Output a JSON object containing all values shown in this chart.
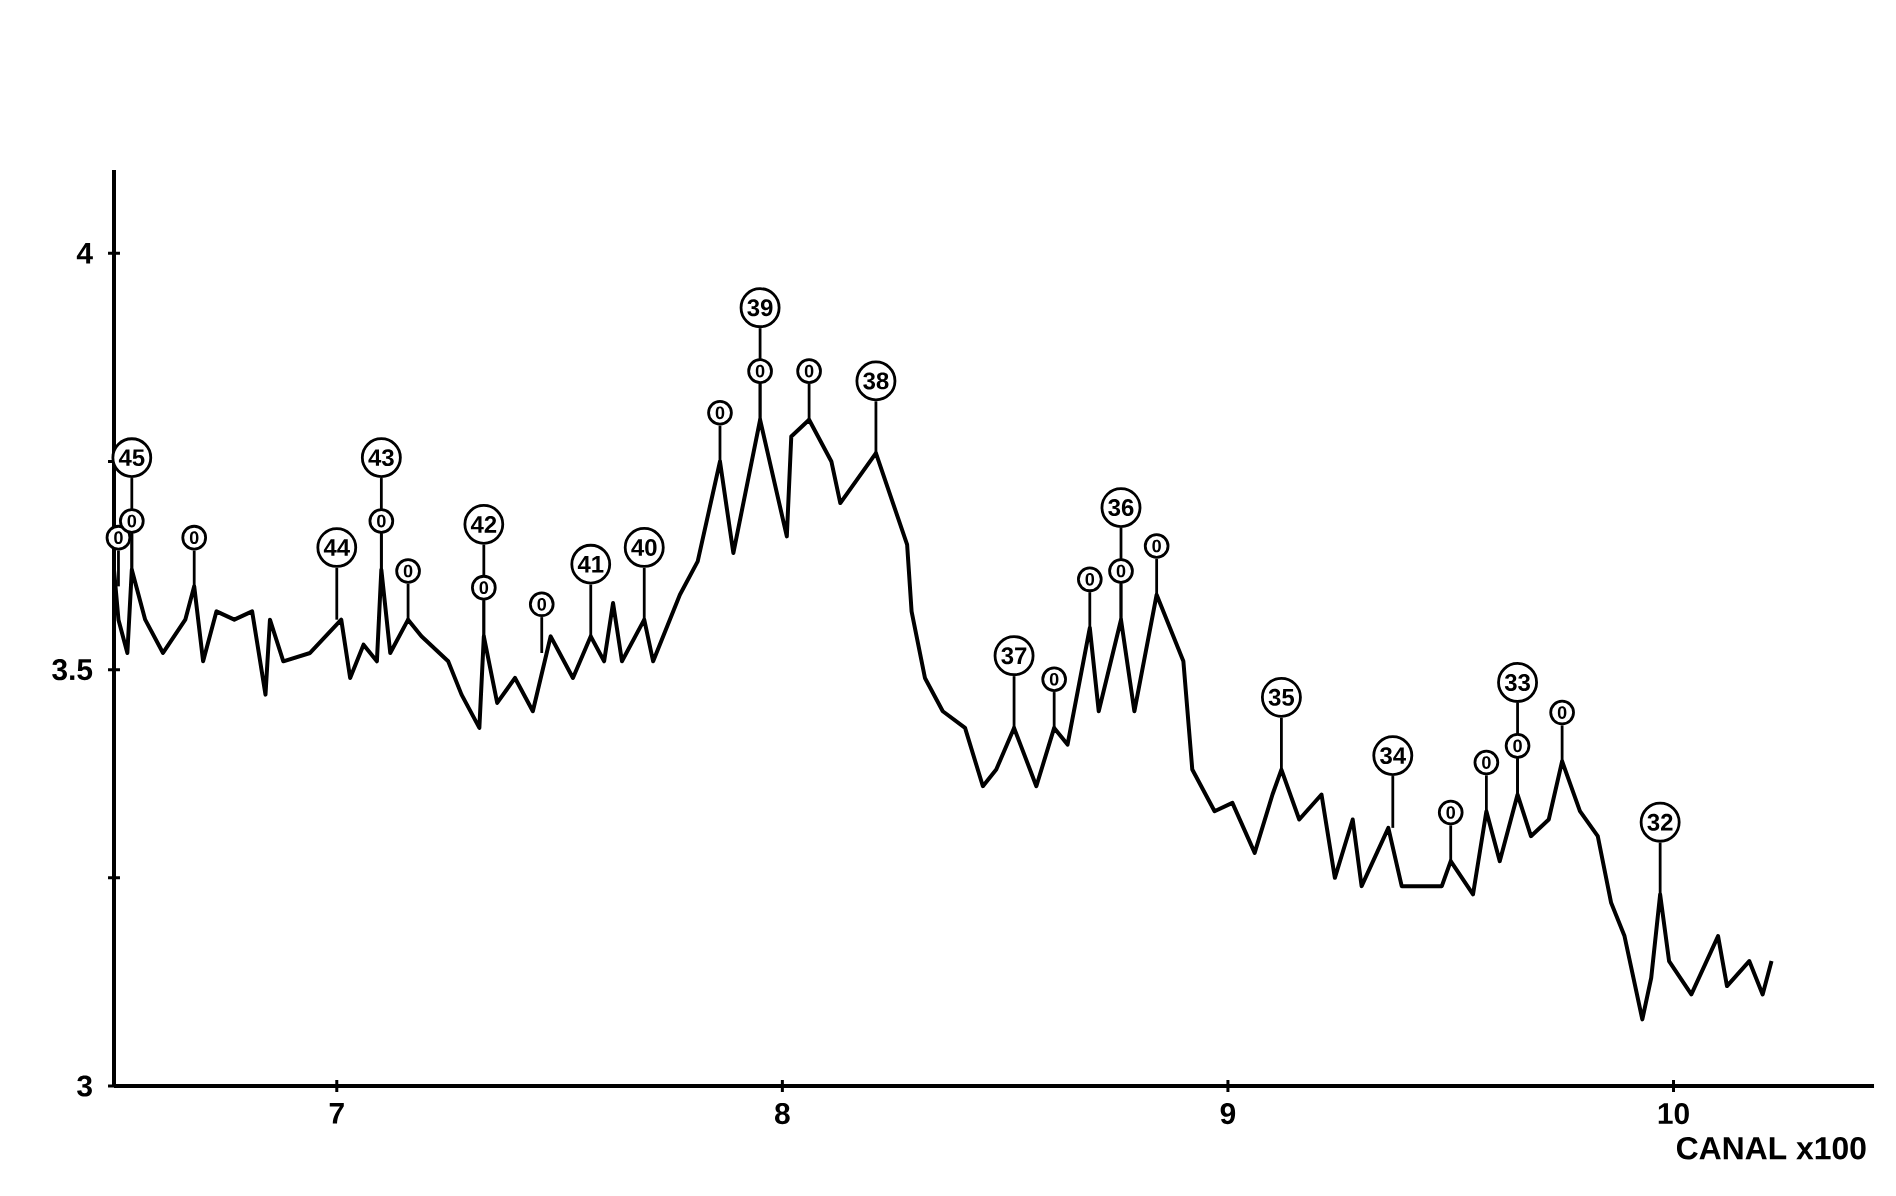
{
  "chart_data": {
    "type": "line",
    "xlabel": "CANAL  x100",
    "xlim": [
      6.5,
      10.45
    ],
    "ylim": [
      3,
      4.1
    ],
    "xticks": [
      7,
      8,
      9,
      10
    ],
    "yticks": [
      3,
      {
        "value": 3.25,
        "label": null
      },
      3.5,
      {
        "value": 3.75,
        "label": null
      },
      4
    ],
    "series": [
      {
        "color": "#000000",
        "x": [
          6.5,
          6.51,
          6.53,
          6.54,
          6.57,
          6.61,
          6.66,
          6.68,
          6.7,
          6.73,
          6.77,
          6.81,
          6.84,
          6.85,
          6.88,
          6.94,
          7.01,
          7.03,
          7.06,
          7.09,
          7.1,
          7.12,
          7.16,
          7.19,
          7.25,
          7.28,
          7.32,
          7.33,
          7.36,
          7.4,
          7.44,
          7.48,
          7.5,
          7.53,
          7.57,
          7.6,
          7.62,
          7.64,
          7.69,
          7.71,
          7.77,
          7.81,
          7.86,
          7.89,
          7.95,
          8.01,
          8.02,
          8.06,
          8.11,
          8.13,
          8.17,
          8.21,
          8.28,
          8.29,
          8.32,
          8.36,
          8.41,
          8.45,
          8.48,
          8.52,
          8.57,
          8.61,
          8.64,
          8.69,
          8.71,
          8.76,
          8.79,
          8.84,
          8.9,
          8.92,
          8.97,
          9.01,
          9.06,
          9.1,
          9.12,
          9.16,
          9.21,
          9.24,
          9.28,
          9.3,
          9.36,
          9.39,
          9.48,
          9.5,
          9.55,
          9.58,
          9.61,
          9.65,
          9.68,
          9.72,
          9.75,
          9.79,
          9.83,
          9.86,
          9.89,
          9.93,
          9.95,
          9.97,
          9.99,
          10.04,
          10.1,
          10.12,
          10.17,
          10.2,
          10.22
        ],
        "values": [
          3.62,
          3.56,
          3.52,
          3.62,
          3.56,
          3.52,
          3.56,
          3.6,
          3.51,
          3.57,
          3.56,
          3.57,
          3.47,
          3.56,
          3.51,
          3.52,
          3.56,
          3.49,
          3.53,
          3.51,
          3.62,
          3.52,
          3.56,
          3.54,
          3.51,
          3.47,
          3.43,
          3.54,
          3.46,
          3.49,
          3.45,
          3.54,
          3.52,
          3.49,
          3.54,
          3.51,
          3.58,
          3.51,
          3.56,
          3.51,
          3.59,
          3.63,
          3.75,
          3.64,
          3.8,
          3.66,
          3.78,
          3.8,
          3.75,
          3.7,
          3.73,
          3.76,
          3.65,
          3.57,
          3.49,
          3.45,
          3.43,
          3.36,
          3.38,
          3.43,
          3.36,
          3.43,
          3.41,
          3.55,
          3.45,
          3.56,
          3.45,
          3.59,
          3.51,
          3.38,
          3.33,
          3.34,
          3.28,
          3.35,
          3.38,
          3.32,
          3.35,
          3.25,
          3.32,
          3.24,
          3.31,
          3.24,
          3.24,
          3.27,
          3.23,
          3.33,
          3.27,
          3.35,
          3.3,
          3.32,
          3.39,
          3.33,
          3.3,
          3.22,
          3.18,
          3.08,
          3.13,
          3.23,
          3.15,
          3.11,
          3.18,
          3.12,
          3.15,
          3.11,
          3.15
        ]
      }
    ],
    "annotations": [
      {
        "text": "45",
        "x": 6.54,
        "y": 3.62
      },
      {
        "text": "0",
        "x": 6.51,
        "y": 3.6
      },
      {
        "text": "0",
        "x": 6.54,
        "y": 3.62
      },
      {
        "text": "0",
        "x": 6.68,
        "y": 3.6
      },
      {
        "text": "44",
        "x": 7.0,
        "y": 3.56
      },
      {
        "text": "43",
        "x": 7.1,
        "y": 3.62
      },
      {
        "text": "0",
        "x": 7.1,
        "y": 3.62
      },
      {
        "text": "0",
        "x": 7.16,
        "y": 3.56
      },
      {
        "text": "42",
        "x": 7.33,
        "y": 3.54
      },
      {
        "text": "0",
        "x": 7.33,
        "y": 3.54
      },
      {
        "text": "0",
        "x": 7.46,
        "y": 3.52
      },
      {
        "text": "41",
        "x": 7.57,
        "y": 3.54
      },
      {
        "text": "40",
        "x": 7.69,
        "y": 3.56
      },
      {
        "text": "39",
        "x": 7.95,
        "y": 3.8
      },
      {
        "text": "0",
        "x": 7.86,
        "y": 3.75
      },
      {
        "text": "0",
        "x": 7.95,
        "y": 3.8
      },
      {
        "text": "0",
        "x": 8.06,
        "y": 3.8
      },
      {
        "text": "38",
        "x": 8.21,
        "y": 3.76
      },
      {
        "text": "37",
        "x": 8.52,
        "y": 3.43
      },
      {
        "text": "36",
        "x": 8.76,
        "y": 3.56
      },
      {
        "text": "0",
        "x": 8.61,
        "y": 3.43
      },
      {
        "text": "0",
        "x": 8.69,
        "y": 3.55
      },
      {
        "text": "0",
        "x": 8.76,
        "y": 3.56
      },
      {
        "text": "0",
        "x": 8.84,
        "y": 3.59
      },
      {
        "text": "35",
        "x": 9.12,
        "y": 3.38
      },
      {
        "text": "34",
        "x": 9.37,
        "y": 3.31
      },
      {
        "text": "33",
        "x": 9.65,
        "y": 3.35
      },
      {
        "text": "0",
        "x": 9.5,
        "y": 3.27
      },
      {
        "text": "0",
        "x": 9.58,
        "y": 3.33
      },
      {
        "text": "0",
        "x": 9.65,
        "y": 3.35
      },
      {
        "text": "0",
        "x": 9.75,
        "y": 3.39
      },
      {
        "text": "32",
        "x": 9.97,
        "y": 3.23
      }
    ]
  }
}
